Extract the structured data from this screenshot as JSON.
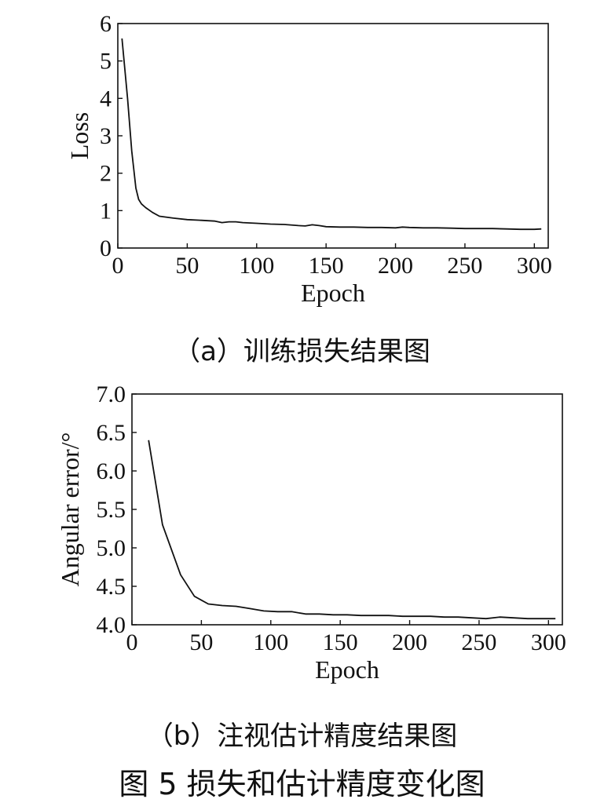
{
  "figure_caption": "图 5   损失和估计精度变化图",
  "chart_data": [
    {
      "type": "line",
      "caption": "（a）训练损失结果图",
      "xlabel": "Epoch",
      "ylabel": "Loss",
      "xlim": [
        0,
        310
      ],
      "ylim": [
        0,
        6
      ],
      "xticks": [
        0,
        50,
        100,
        150,
        200,
        250,
        300
      ],
      "yticks": [
        0,
        1,
        2,
        3,
        4,
        5,
        6
      ],
      "xtick_labels": [
        "0",
        "50",
        "100",
        "150",
        "200",
        "250",
        "300"
      ],
      "ytick_labels": [
        "0",
        "1",
        "2",
        "3",
        "4",
        "5",
        "6"
      ],
      "grid": false,
      "series": [
        {
          "x": [
            3,
            7,
            10,
            13,
            15,
            17,
            20,
            25,
            30,
            40,
            50,
            60,
            70,
            75,
            80,
            85,
            90,
            100,
            110,
            120,
            130,
            135,
            140,
            145,
            150,
            160,
            170,
            180,
            190,
            200,
            205,
            210,
            220,
            230,
            240,
            250,
            260,
            270,
            280,
            290,
            300,
            305
          ],
          "y": [
            5.6,
            4.0,
            2.6,
            1.6,
            1.3,
            1.18,
            1.08,
            0.95,
            0.85,
            0.8,
            0.76,
            0.74,
            0.72,
            0.68,
            0.7,
            0.7,
            0.68,
            0.66,
            0.64,
            0.63,
            0.6,
            0.59,
            0.62,
            0.6,
            0.57,
            0.56,
            0.56,
            0.55,
            0.55,
            0.54,
            0.56,
            0.55,
            0.54,
            0.54,
            0.53,
            0.52,
            0.52,
            0.52,
            0.51,
            0.5,
            0.5,
            0.51
          ]
        }
      ]
    },
    {
      "type": "line",
      "caption": "（b）注视估计精度结果图",
      "xlabel": "Epoch",
      "ylabel": "Angular error/°",
      "xlim": [
        0,
        310
      ],
      "ylim": [
        4.0,
        7.0
      ],
      "xticks": [
        0,
        50,
        100,
        150,
        200,
        250,
        300
      ],
      "yticks": [
        4.0,
        4.5,
        5.0,
        5.5,
        6.0,
        6.5,
        7.0
      ],
      "xtick_labels": [
        "0",
        "50",
        "100",
        "150",
        "200",
        "250",
        "300"
      ],
      "ytick_labels": [
        "4.0",
        "4.5",
        "5.0",
        "5.5",
        "6.0",
        "6.5",
        "7.0"
      ],
      "grid": false,
      "series": [
        {
          "x": [
            12,
            22,
            35,
            45,
            55,
            65,
            75,
            85,
            95,
            105,
            115,
            125,
            135,
            145,
            155,
            165,
            175,
            185,
            195,
            205,
            215,
            225,
            235,
            245,
            255,
            265,
            275,
            285,
            295,
            305
          ],
          "y": [
            6.4,
            5.3,
            4.65,
            4.37,
            4.27,
            4.25,
            4.24,
            4.21,
            4.18,
            4.17,
            4.17,
            4.14,
            4.14,
            4.13,
            4.13,
            4.12,
            4.12,
            4.12,
            4.11,
            4.11,
            4.11,
            4.1,
            4.1,
            4.09,
            4.08,
            4.1,
            4.09,
            4.08,
            4.08,
            4.08
          ]
        }
      ]
    }
  ]
}
